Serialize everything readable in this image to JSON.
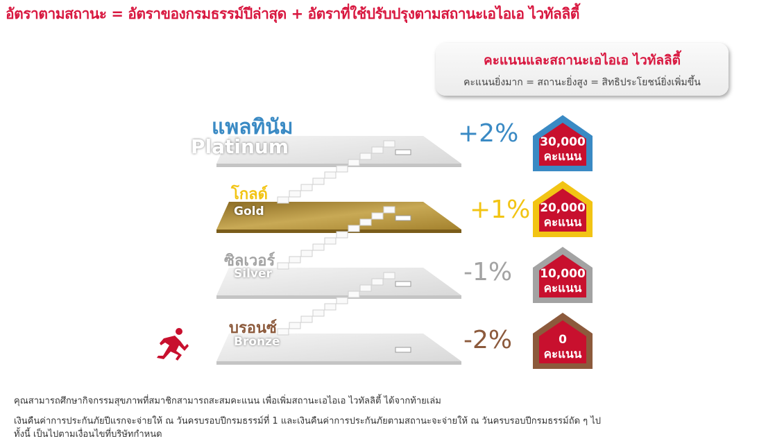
{
  "header": {
    "title": "อัตราตามสถานะ = อัตราของกรมธรรม์ปีล่าสุด + อัตราที่ใช้ปรับปรุงตามสถานะเอไอเอ ไวทัลลิตี้"
  },
  "info_box": {
    "title": "คะแนนและสถานะเอไอเอ ไวทัลลิตี้",
    "subtitle": "คะแนนยิ่งมาก  =  สถานะยิ่งสูง  =  สิทธิประโยชน์ยิ่งเพิ่มขึ้น"
  },
  "tiers": [
    {
      "name_th": "แพลทินัม",
      "name_en": "Platinum",
      "adjustment": "+2%",
      "points": "30,000",
      "points_unit": "คะแนน",
      "color": "#3a8ac4"
    },
    {
      "name_th": "โกลด์",
      "name_en": "Gold",
      "adjustment": "+1%",
      "points": "20,000",
      "points_unit": "คะแนน",
      "color": "#f2c414"
    },
    {
      "name_th": "ซิลเวอร์",
      "name_en": "Silver",
      "adjustment": "-1%",
      "points": "10,000",
      "points_unit": "คะแนน",
      "color": "#a3a3a3"
    },
    {
      "name_th": "บรอนซ์",
      "name_en": "Bronze",
      "adjustment": "-2%",
      "points": "0",
      "points_unit": "คะแนน",
      "color": "#8c5a3c"
    }
  ],
  "colors": {
    "accent": "#d8173f",
    "badge": "#c8102e"
  },
  "icons": {
    "runner": "running-person-icon",
    "house": "house-badge-icon"
  },
  "footer": {
    "line1": "คุณสามารถศึกษากิจกรรมสุขภาพที่สมาชิกสามารถสะสมคะแนน เพื่อเพิ่มสถานะเอไอเอ ไวทัลลิตี้ ได้จากท้ายเล่ม",
    "line2": "เงินคืนค่าการประกันภัยปีแรกจะจ่ายให้ ณ วันครบรอบปีกรมธรรม์ที่ 1 และเงินคืนค่าการประกันภัยตามสถานะจะจ่ายให้ ณ วันครบรอบปีกรมธรรม์ถัด ๆ ไป",
    "line3": "ทั้งนี้ เป็นไปตามเงื่อนไขที่บริษัทกำหนด"
  }
}
